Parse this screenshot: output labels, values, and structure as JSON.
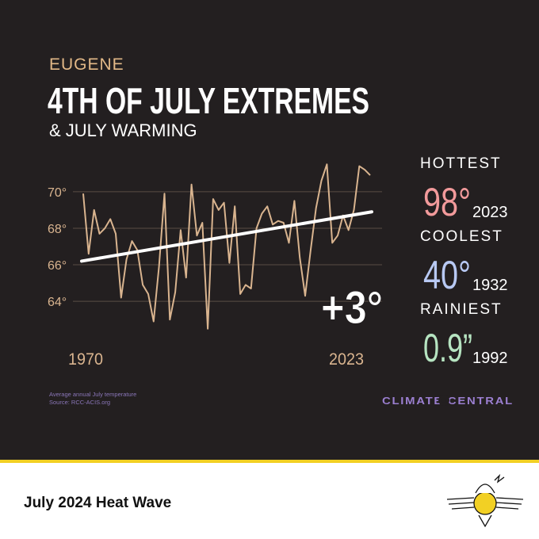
{
  "chart_data": {
    "type": "line",
    "place": "EUGENE",
    "title": "4TH OF JULY EXTREMES",
    "subtitle": "& JULY WARMING",
    "x": [
      1970,
      1971,
      1972,
      1973,
      1974,
      1975,
      1976,
      1977,
      1978,
      1979,
      1980,
      1981,
      1982,
      1983,
      1984,
      1985,
      1986,
      1987,
      1988,
      1989,
      1990,
      1991,
      1992,
      1993,
      1994,
      1995,
      1996,
      1997,
      1998,
      1999,
      2000,
      2001,
      2002,
      2003,
      2004,
      2005,
      2006,
      2007,
      2008,
      2009,
      2010,
      2011,
      2012,
      2013,
      2014,
      2015,
      2016,
      2017,
      2018,
      2019,
      2020,
      2021,
      2022,
      2023
    ],
    "values": [
      69.9,
      66.6,
      69.0,
      67.7,
      68.0,
      68.5,
      67.7,
      64.2,
      66.3,
      67.3,
      66.8,
      64.9,
      64.4,
      62.9,
      65.9,
      69.9,
      63.0,
      64.5,
      67.9,
      65.3,
      70.4,
      67.6,
      68.3,
      62.5,
      69.6,
      69.0,
      69.4,
      66.1,
      69.2,
      64.4,
      64.9,
      64.7,
      68.0,
      68.8,
      69.2,
      68.2,
      68.4,
      68.3,
      67.2,
      69.5,
      66.4,
      64.3,
      66.8,
      69.1,
      70.6,
      71.5,
      67.2,
      67.6,
      68.7,
      67.9,
      69.0,
      71.4,
      71.2,
      70.9
    ],
    "color": "#d9b48f",
    "trend": {
      "x": [
        1970,
        2023
      ],
      "values": [
        66.2,
        68.9
      ],
      "color": "#ffffff",
      "label": "+3°"
    },
    "xlim": [
      1970,
      2023
    ],
    "xticks": [
      1970,
      2023
    ],
    "ylim": [
      62.4,
      71.6
    ],
    "yticks": [
      {
        "value": 64,
        "label": "64°"
      },
      {
        "value": 66,
        "label": "66°"
      },
      {
        "value": 68,
        "label": "68°"
      },
      {
        "value": 70,
        "label": "70°"
      }
    ],
    "grid": true,
    "note": "Average annual July temperature",
    "source": "Source: RCC-ACIS.org",
    "stats": [
      {
        "label": "HOTTEST",
        "value": "98°",
        "year": "2023",
        "color": "#f29a9b"
      },
      {
        "label": "COOLEST",
        "value": "40°",
        "year": "1932",
        "color": "#b8c9f3"
      },
      {
        "label": "RAINIEST",
        "value": "0.9”",
        "year": "1992",
        "color": "#b6e4c1"
      }
    ],
    "brand": "CLIMATE CENTRAL",
    "footer": "July 2024 Heat Wave"
  }
}
